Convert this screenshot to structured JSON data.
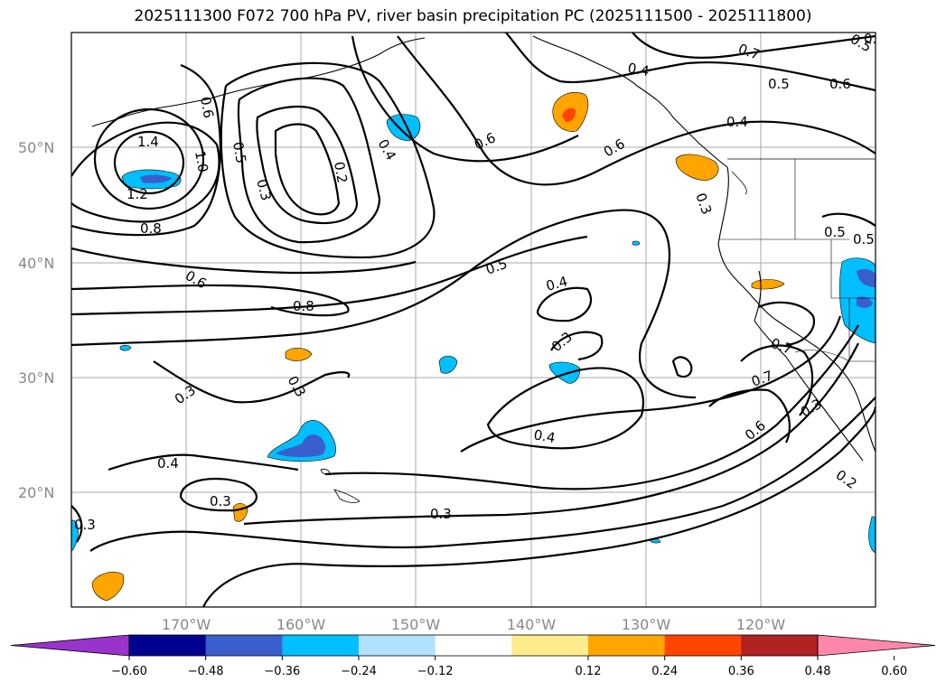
{
  "title": "2025111300 F072 700 hPa PV, river basin precipitation PC (2025111500 - 2025111800)",
  "map": {
    "lat_labels": [
      "50°N",
      "40°N",
      "30°N",
      "20°N"
    ],
    "lon_labels": [
      "170°W",
      "160°W",
      "150°W",
      "140°W",
      "130°W",
      "120°W"
    ],
    "grid": true
  },
  "contour_labels": [
    "1.4",
    "1.2",
    "1.0",
    "0.8",
    "0.6",
    "0.5",
    "0.3",
    "0.2",
    "0.4",
    "0.6",
    "0.4",
    "0.8",
    "0.5",
    "0.6",
    "0.3",
    "0.3",
    "0.5",
    "0.6",
    "0.4",
    "0.5",
    "0.4",
    "0.3",
    "0.3",
    "0.4",
    "0.3",
    "0.3",
    "0.4",
    "0.3",
    "0.7",
    "0.7",
    "0.6",
    "0.2",
    "0.3",
    "0.6",
    "0.5",
    "0.7",
    "0.5",
    "0.6"
  ],
  "colorbar": {
    "ticks": [
      "−0.60",
      "−0.48",
      "−0.36",
      "−0.24",
      "−0.12",
      "0.12",
      "0.24",
      "0.36",
      "0.48",
      "0.60"
    ],
    "colors": [
      "#9933cc",
      "#000090",
      "#3a5fcd",
      "#00bfff",
      "#b0e2ff",
      "#ffffff",
      "#ffec8b",
      "#ffa500",
      "#ff4500",
      "#b22222",
      "#ff88aa"
    ]
  }
}
